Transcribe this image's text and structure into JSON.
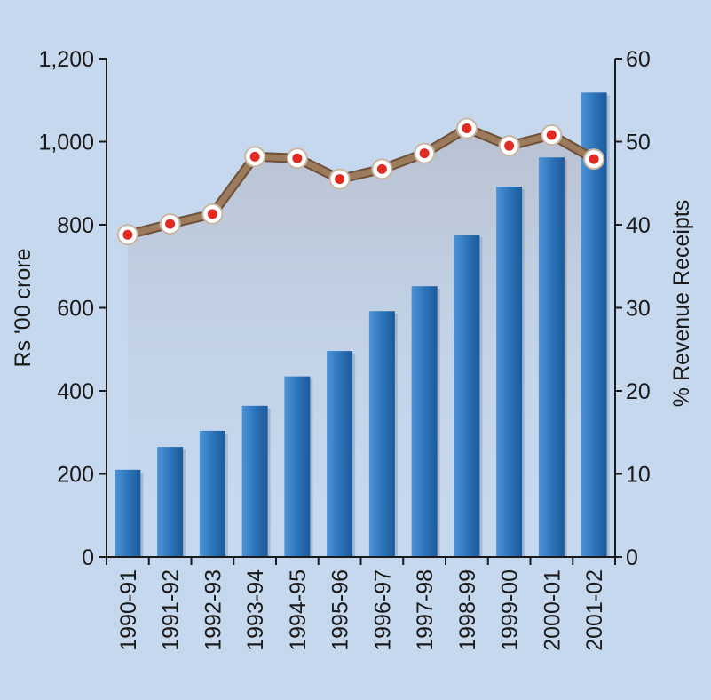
{
  "chart_data": {
    "type": "bar",
    "categories": [
      "1990-91",
      "1991-92",
      "1992-93",
      "1993-94",
      "1994-95",
      "1995-96",
      "1996-97",
      "1997-98",
      "1998-99",
      "1999-00",
      "2000-01",
      "2001-02"
    ],
    "series": [
      {
        "type": "bar",
        "axis": "left",
        "values": [
          210,
          265,
          304,
          364,
          435,
          496,
          592,
          652,
          776,
          892,
          962,
          1118
        ]
      },
      {
        "type": "line",
        "axis": "right",
        "values": [
          38.8,
          40.1,
          41.3,
          48.2,
          48.0,
          45.5,
          46.7,
          48.6,
          51.6,
          49.5,
          50.8,
          47.9
        ]
      }
    ],
    "ylabel": "Rs '00 crore",
    "y2label": "% Revenue Receipts",
    "ylim": [
      0,
      1200
    ],
    "y2lim": [
      0,
      60
    ],
    "yticks": [
      "0",
      "200",
      "400",
      "600",
      "800",
      "1,000",
      "1,200"
    ],
    "y2ticks": [
      "0",
      "10",
      "20",
      "30",
      "40",
      "50",
      "60"
    ],
    "grid": false,
    "colors": {
      "background": "#c6d8ee",
      "bar": "#2a72b8",
      "line": "#9c7a5c",
      "marker_ring": "#e02a22",
      "marker_center": "#ffffff"
    }
  }
}
